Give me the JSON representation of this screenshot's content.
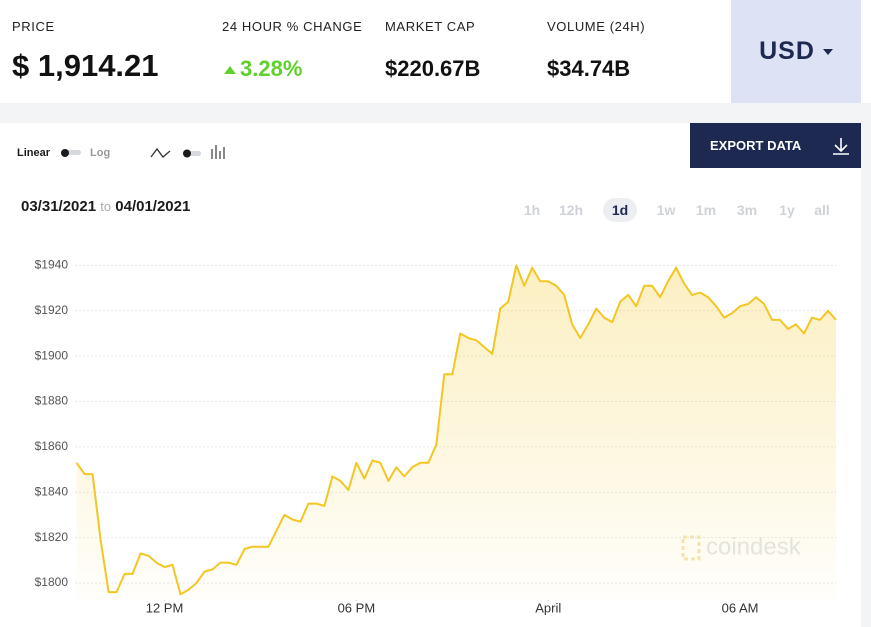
{
  "header": {
    "stats": [
      {
        "label": "PRICE",
        "value": "$ 1,914.21"
      },
      {
        "label": "24 HOUR % CHANGE",
        "value": "3.28%"
      },
      {
        "label": "MARKET CAP",
        "value": "$220.67B"
      },
      {
        "label": "VOLUME (24H)",
        "value": "$34.74B"
      }
    ],
    "currency": "USD"
  },
  "controls": {
    "scale_options": [
      "Linear",
      "Log"
    ],
    "export_label": "EXPORT DATA",
    "date_from": "03/31/2021",
    "date_sep": "to",
    "date_to": "04/01/2021",
    "ranges": [
      "1h",
      "12h",
      "1d",
      "1w",
      "1m",
      "3m",
      "1y",
      "all"
    ],
    "selected_range": "1d"
  },
  "chart_data": {
    "type": "line",
    "color": "#f3c623",
    "grid": true,
    "watermark": "coindesk",
    "x": [
      9.25,
      9.5,
      9.75,
      10,
      10.25,
      10.5,
      10.75,
      11,
      11.25,
      11.5,
      11.75,
      12,
      12.25,
      12.5,
      12.75,
      13,
      13.25,
      13.5,
      13.75,
      14,
      14.25,
      14.5,
      14.75,
      15,
      15.25,
      15.5,
      15.75,
      16,
      16.25,
      16.5,
      16.75,
      17,
      17.25,
      17.5,
      17.75,
      18,
      18.25,
      18.5,
      18.75,
      19,
      19.25,
      19.5,
      19.75,
      20,
      20.25,
      20.5,
      20.75,
      21,
      21.25,
      21.5,
      21.75,
      22,
      22.25,
      22.5,
      22.75,
      23,
      23.25,
      23.5,
      23.75,
      24,
      24.25,
      24.5,
      24.75,
      25,
      25.25,
      25.5,
      25.75,
      26,
      26.25,
      26.5,
      26.75,
      27,
      27.25,
      27.5,
      27.75,
      28,
      28.25,
      28.5,
      28.75,
      29,
      29.25,
      29.5,
      29.75,
      30,
      30.25,
      30.5,
      30.75,
      31,
      31.25,
      31.5,
      31.75,
      32,
      32.25,
      32.5,
      32.75,
      33
    ],
    "values": [
      1853,
      1848,
      1848,
      1819,
      1796,
      1796,
      1804,
      1804,
      1813,
      1812,
      1809,
      1807,
      1808,
      1795,
      1797,
      1800,
      1805,
      1806,
      1809,
      1809,
      1808,
      1815,
      1816,
      1816,
      1816,
      1823,
      1830,
      1828,
      1827,
      1835,
      1835,
      1834,
      1847,
      1845,
      1841,
      1853,
      1846,
      1854,
      1853,
      1845,
      1851,
      1847,
      1851,
      1853,
      1853,
      1861,
      1892,
      1892,
      1910,
      1908,
      1907,
      1904,
      1901,
      1921,
      1924,
      1940,
      1931,
      1939,
      1933,
      1933,
      1931,
      1927,
      1914,
      1908,
      1914,
      1921,
      1917,
      1915,
      1924,
      1927,
      1922,
      1931,
      1931,
      1926,
      1933,
      1939,
      1932,
      1927,
      1928,
      1926,
      1922,
      1917,
      1919,
      1922,
      1923,
      1926,
      1923,
      1916,
      1916,
      1912,
      1914,
      1910,
      1917,
      1916,
      1920,
      1916
    ],
    "xlim": [
      9.2,
      33
    ],
    "ylim": [
      1792.5,
      1949
    ],
    "xticks": [
      {
        "value": 12,
        "label": "12 PM"
      },
      {
        "value": 18,
        "label": "06 PM"
      },
      {
        "value": 24,
        "label": "April"
      },
      {
        "value": 30,
        "label": "06 AM"
      }
    ],
    "yticks": [
      {
        "value": 1800,
        "label": "$1800"
      },
      {
        "value": 1820,
        "label": "$1820"
      },
      {
        "value": 1840,
        "label": "$1840"
      },
      {
        "value": 1860,
        "label": "$1860"
      },
      {
        "value": 1880,
        "label": "$1880"
      },
      {
        "value": 1900,
        "label": "$1900"
      },
      {
        "value": 1920,
        "label": "$1920"
      },
      {
        "value": 1940,
        "label": "$1940"
      }
    ]
  }
}
